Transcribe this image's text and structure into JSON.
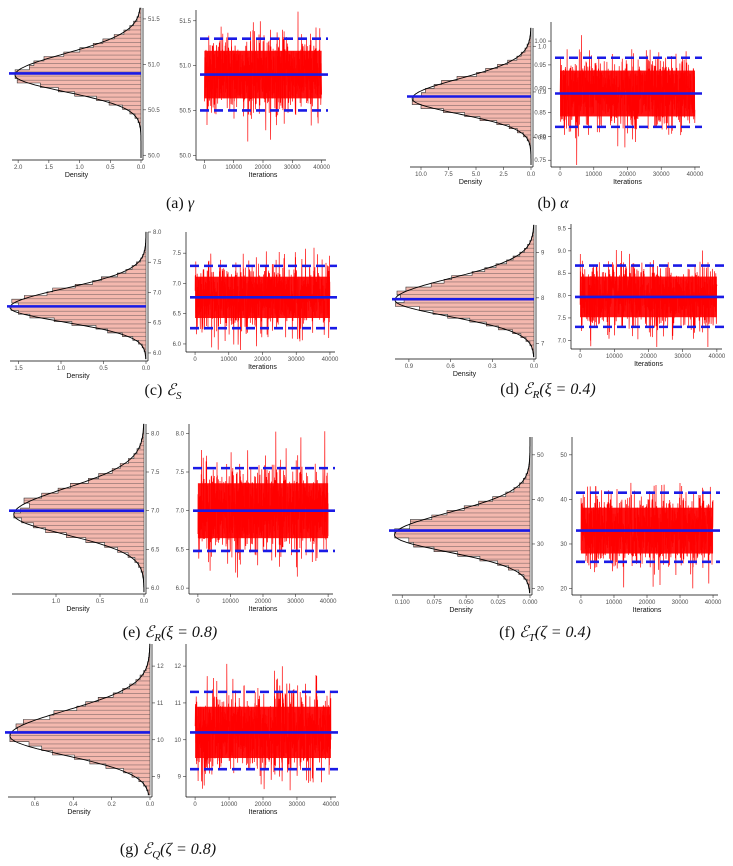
{
  "panels": [
    {
      "id": "a",
      "caption": {
        "prefix": "(a) ",
        "symbol": "γ",
        "sub": "",
        "cond": ""
      },
      "hist": {
        "xlabel": "Density",
        "xticks": [
          2.0,
          1.5,
          1.0,
          0.5,
          0.0
        ],
        "xtick_labels": [
          "2.0",
          "1.5",
          "1.0",
          "0.5",
          "0.0"
        ],
        "xlim": [
          0,
          2.1
        ],
        "yticks": [
          50.0,
          50.5,
          51.0,
          51.5
        ],
        "ytick_labels": [
          "50.0",
          "50.5",
          "51.0",
          "51.5"
        ],
        "ylim": [
          49.97,
          51.62
        ],
        "peak_density": 2.05,
        "mode": 50.88,
        "sd": 0.19
      },
      "trace": {
        "xlabel": "Iterations",
        "xticks": [
          0,
          10000,
          20000,
          30000,
          40000
        ],
        "xtick_labels": [
          "0",
          "10000",
          "20000",
          "30000",
          "40000"
        ],
        "xlim": [
          -1500,
          41500
        ],
        "yticks": [
          50.0,
          50.5,
          51.0,
          51.5
        ],
        "ytick_labels": [
          "50.0",
          "50.5",
          "51.0",
          "51.5"
        ],
        "ylim": [
          49.97,
          51.62
        ],
        "mean": 50.9,
        "lower": 50.5,
        "upper": 51.3
      }
    },
    {
      "id": "b",
      "caption": {
        "prefix": "(b) ",
        "symbol": "α",
        "sub": "",
        "cond": ""
      },
      "hist": {
        "xlabel": "Density",
        "xticks": [
          10.0,
          7.5,
          5.0,
          2.5,
          0.0
        ],
        "xtick_labels": [
          "10.0",
          "7.5",
          "5.0",
          "2.5",
          "0.0"
        ],
        "xlim": [
          0,
          11.0
        ],
        "yticks": [
          0.8,
          0.9,
          1.0
        ],
        "ytick_labels": [
          "0.8",
          "0.9",
          "1.0"
        ],
        "ylim": [
          0.74,
          1.04
        ],
        "peak_density": 10.8,
        "mode": 0.885,
        "sd": 0.035
      },
      "trace": {
        "xlabel": "Iterations",
        "xticks": [
          0,
          10000,
          20000,
          30000,
          40000
        ],
        "xtick_labels": [
          "0",
          "10000",
          "20000",
          "30000",
          "40000"
        ],
        "xlim": [
          -1500,
          41500
        ],
        "yticks": [
          0.75,
          0.8,
          0.85,
          0.9,
          0.95,
          1.0
        ],
        "ytick_labels": [
          "0.75",
          "0.80",
          "0.85",
          "0.90",
          "0.95",
          "1.00"
        ],
        "ylim": [
          0.74,
          1.04
        ],
        "mean": 0.89,
        "lower": 0.82,
        "upper": 0.965
      }
    },
    {
      "id": "c",
      "caption": {
        "prefix": "(c) ",
        "symbol": "ℰ",
        "sub": "S",
        "cond": ""
      },
      "hist": {
        "xlabel": "Density",
        "xticks": [
          1.5,
          1.0,
          0.5,
          0.0
        ],
        "xtick_labels": [
          "1.5",
          "1.0",
          "0.5",
          "0.0"
        ],
        "xlim": [
          0,
          1.6
        ],
        "yticks": [
          6.0,
          6.5,
          7.0,
          7.5,
          8.0
        ],
        "ytick_labels": [
          "6.0",
          "6.5",
          "7.0",
          "7.5",
          "8.0"
        ],
        "ylim": [
          5.9,
          8.0
        ],
        "peak_density": 1.6,
        "mode": 6.75,
        "sd": 0.25
      },
      "trace": {
        "xlabel": "Iterations",
        "xticks": [
          0,
          10000,
          20000,
          30000,
          40000
        ],
        "xtick_labels": [
          "0",
          "10000",
          "20000",
          "30000",
          "40000"
        ],
        "xlim": [
          -1500,
          41500
        ],
        "yticks": [
          6.0,
          6.5,
          7.0,
          7.5
        ],
        "ytick_labels": [
          "6.0",
          "6.5",
          "7.0",
          "7.5"
        ],
        "ylim": [
          5.9,
          7.85
        ],
        "mean": 6.77,
        "lower": 6.26,
        "upper": 7.29
      }
    },
    {
      "id": "d",
      "caption": {
        "prefix": "(d) ",
        "symbol": "ℰ",
        "sub": "R",
        "cond": "(ξ = 0.4)"
      },
      "hist": {
        "xlabel": "Density",
        "xticks": [
          0.9,
          0.6,
          0.3,
          0.0
        ],
        "xtick_labels": [
          "0.9",
          "0.6",
          "0.3",
          "0.0"
        ],
        "xlim": [
          0,
          1.0
        ],
        "yticks": [
          7,
          8,
          9
        ],
        "ytick_labels": [
          "7",
          "8",
          "9"
        ],
        "ylim": [
          6.7,
          9.6
        ],
        "peak_density": 1.0,
        "mode": 7.95,
        "sd": 0.38
      },
      "trace": {
        "xlabel": "Iterations",
        "xticks": [
          0,
          10000,
          20000,
          30000,
          40000
        ],
        "xtick_labels": [
          "0",
          "10000",
          "20000",
          "30000",
          "40000"
        ],
        "xlim": [
          -1500,
          41500
        ],
        "yticks": [
          7.0,
          7.5,
          8.0,
          8.5,
          9.0,
          9.5
        ],
        "ytick_labels": [
          "7.0",
          "7.5",
          "8.0",
          "8.5",
          "9.0",
          "9.5"
        ],
        "ylim": [
          6.85,
          9.6
        ],
        "mean": 7.97,
        "lower": 7.3,
        "upper": 8.67
      }
    },
    {
      "id": "e",
      "caption": {
        "prefix": "(e) ",
        "symbol": "ℰ",
        "sub": "R",
        "cond": "(ξ = 0.8)"
      },
      "hist": {
        "xlabel": "Density",
        "xticks": [
          1.0,
          0.5,
          0.0
        ],
        "xtick_labels": [
          "1.0",
          "0.5",
          "0.0"
        ],
        "xlim": [
          0,
          1.5
        ],
        "yticks": [
          6.0,
          6.5,
          7.0,
          7.5,
          8.0
        ],
        "ytick_labels": [
          "6.0",
          "6.5",
          "7.0",
          "7.5",
          "8.0"
        ],
        "ylim": [
          5.95,
          8.12
        ],
        "peak_density": 1.48,
        "mode": 6.95,
        "sd": 0.27
      },
      "trace": {
        "xlabel": "Iterations",
        "xticks": [
          0,
          10000,
          20000,
          30000,
          40000
        ],
        "xtick_labels": [
          "0",
          "10000",
          "20000",
          "30000",
          "40000"
        ],
        "xlim": [
          -1500,
          41500
        ],
        "yticks": [
          6.0,
          6.5,
          7.0,
          7.5,
          8.0
        ],
        "ytick_labels": [
          "6.0",
          "6.5",
          "7.0",
          "7.5",
          "8.0"
        ],
        "ylim": [
          5.95,
          8.12
        ],
        "mean": 7.0,
        "lower": 6.48,
        "upper": 7.55
      }
    },
    {
      "id": "f",
      "caption": {
        "prefix": "(f) ",
        "symbol": "ℰ",
        "sub": "T",
        "cond": "(ζ = 0.4)"
      },
      "hist": {
        "xlabel": "Density",
        "xticks": [
          0.1,
          0.075,
          0.05,
          0.025,
          0.0
        ],
        "xtick_labels": [
          "0.100",
          "0.075",
          "0.050",
          "0.025",
          "0.000"
        ],
        "xlim": [
          0,
          0.108
        ],
        "yticks": [
          20,
          30,
          40,
          50
        ],
        "ytick_labels": [
          "20",
          "30",
          "40",
          "50"
        ],
        "ylim": [
          19,
          54
        ],
        "peak_density": 0.106,
        "mode": 32.0,
        "sd": 4.0
      },
      "trace": {
        "xlabel": "Iterations",
        "xticks": [
          0,
          10000,
          20000,
          30000,
          40000
        ],
        "xtick_labels": [
          "0",
          "10000",
          "20000",
          "30000",
          "40000"
        ],
        "xlim": [
          -1500,
          41500
        ],
        "yticks": [
          20,
          30,
          40,
          50
        ],
        "ytick_labels": [
          "20",
          "30",
          "40",
          "50"
        ],
        "ylim": [
          19,
          54
        ],
        "mean": 33.0,
        "lower": 26.0,
        "upper": 41.5
      }
    },
    {
      "id": "g",
      "caption": {
        "prefix": "(g) ",
        "symbol": "ℰ",
        "sub": "Q",
        "cond": "(ζ = 0.8)"
      },
      "hist": {
        "xlabel": "Density",
        "xticks": [
          0.6,
          0.4,
          0.2,
          0.0
        ],
        "xtick_labels": [
          "0.6",
          "0.4",
          "0.2",
          "0.0"
        ],
        "xlim": [
          0,
          0.74
        ],
        "yticks": [
          9,
          10,
          11,
          12
        ],
        "ytick_labels": [
          "9",
          "10",
          "11",
          "12"
        ],
        "ylim": [
          8.5,
          12.6
        ],
        "peak_density": 0.73,
        "mode": 10.1,
        "sd": 0.55
      },
      "trace": {
        "xlabel": "Iterations",
        "xticks": [
          0,
          10000,
          20000,
          30000,
          40000
        ],
        "xtick_labels": [
          "0",
          "10000",
          "20000",
          "30000",
          "40000"
        ],
        "xlim": [
          -1500,
          41500
        ],
        "yticks": [
          9,
          10,
          11,
          12
        ],
        "ytick_labels": [
          "9",
          "10",
          "11",
          "12"
        ],
        "ylim": [
          8.5,
          12.6
        ],
        "mean": 10.2,
        "lower": 9.2,
        "upper": 11.3
      }
    }
  ],
  "chart_data": [
    {
      "type": "area",
      "panel": "a",
      "x_label": "Density",
      "y_range": [
        49.97,
        51.62
      ],
      "x_range": [
        0,
        2.1
      ],
      "mode": 50.88,
      "peak_density": 2.05,
      "mean_line": 50.9
    },
    {
      "type": "line",
      "panel": "a",
      "x_label": "Iterations",
      "x_range": [
        0,
        40000
      ],
      "y_range": [
        49.97,
        51.62
      ],
      "mean": 50.9,
      "interval": [
        50.5,
        51.3
      ]
    },
    {
      "type": "area",
      "panel": "b",
      "x_label": "Density",
      "y_range": [
        0.74,
        1.04
      ],
      "x_range": [
        0,
        11.0
      ],
      "mode": 0.885,
      "peak_density": 10.8,
      "mean_line": 0.89
    },
    {
      "type": "line",
      "panel": "b",
      "x_label": "Iterations",
      "x_range": [
        0,
        40000
      ],
      "y_range": [
        0.74,
        1.04
      ],
      "mean": 0.89,
      "interval": [
        0.82,
        0.965
      ]
    },
    {
      "type": "area",
      "panel": "c",
      "x_label": "Density",
      "y_range": [
        5.9,
        8.0
      ],
      "x_range": [
        0,
        1.6
      ],
      "mode": 6.75,
      "peak_density": 1.6,
      "mean_line": 6.77
    },
    {
      "type": "line",
      "panel": "c",
      "x_label": "Iterations",
      "x_range": [
        0,
        40000
      ],
      "y_range": [
        5.9,
        7.85
      ],
      "mean": 6.77,
      "interval": [
        6.26,
        7.29
      ]
    },
    {
      "type": "area",
      "panel": "d",
      "x_label": "Density",
      "y_range": [
        6.7,
        9.6
      ],
      "x_range": [
        0,
        1.0
      ],
      "mode": 7.95,
      "peak_density": 1.0,
      "mean_line": 7.97
    },
    {
      "type": "line",
      "panel": "d",
      "x_label": "Iterations",
      "x_range": [
        0,
        40000
      ],
      "y_range": [
        6.85,
        9.6
      ],
      "mean": 7.97,
      "interval": [
        7.3,
        8.67
      ]
    },
    {
      "type": "area",
      "panel": "e",
      "x_label": "Density",
      "y_range": [
        5.95,
        8.12
      ],
      "x_range": [
        0,
        1.5
      ],
      "mode": 6.95,
      "peak_density": 1.48,
      "mean_line": 7.0
    },
    {
      "type": "line",
      "panel": "e",
      "x_label": "Iterations",
      "x_range": [
        0,
        40000
      ],
      "y_range": [
        5.95,
        8.12
      ],
      "mean": 7.0,
      "interval": [
        6.48,
        7.55
      ]
    },
    {
      "type": "area",
      "panel": "f",
      "x_label": "Density",
      "y_range": [
        19,
        54
      ],
      "x_range": [
        0,
        0.108
      ],
      "mode": 32.0,
      "peak_density": 0.106,
      "mean_line": 33.0
    },
    {
      "type": "line",
      "panel": "f",
      "x_label": "Iterations",
      "x_range": [
        0,
        40000
      ],
      "y_range": [
        19,
        54
      ],
      "mean": 33.0,
      "interval": [
        26.0,
        41.5
      ]
    },
    {
      "type": "area",
      "panel": "g",
      "x_label": "Density",
      "y_range": [
        8.5,
        12.6
      ],
      "x_range": [
        0,
        0.74
      ],
      "mode": 10.1,
      "peak_density": 0.73,
      "mean_line": 10.2
    },
    {
      "type": "line",
      "panel": "g",
      "x_label": "Iterations",
      "x_range": [
        0,
        40000
      ],
      "y_range": [
        8.5,
        12.6
      ],
      "mean": 10.2,
      "interval": [
        9.2,
        11.3
      ]
    }
  ],
  "colors": {
    "hist_fill": "#f4b8ae",
    "hist_stripe": "#555555",
    "density_curve": "#000000",
    "trace": "#ff0000",
    "stat_line": "#1a1ae6"
  }
}
